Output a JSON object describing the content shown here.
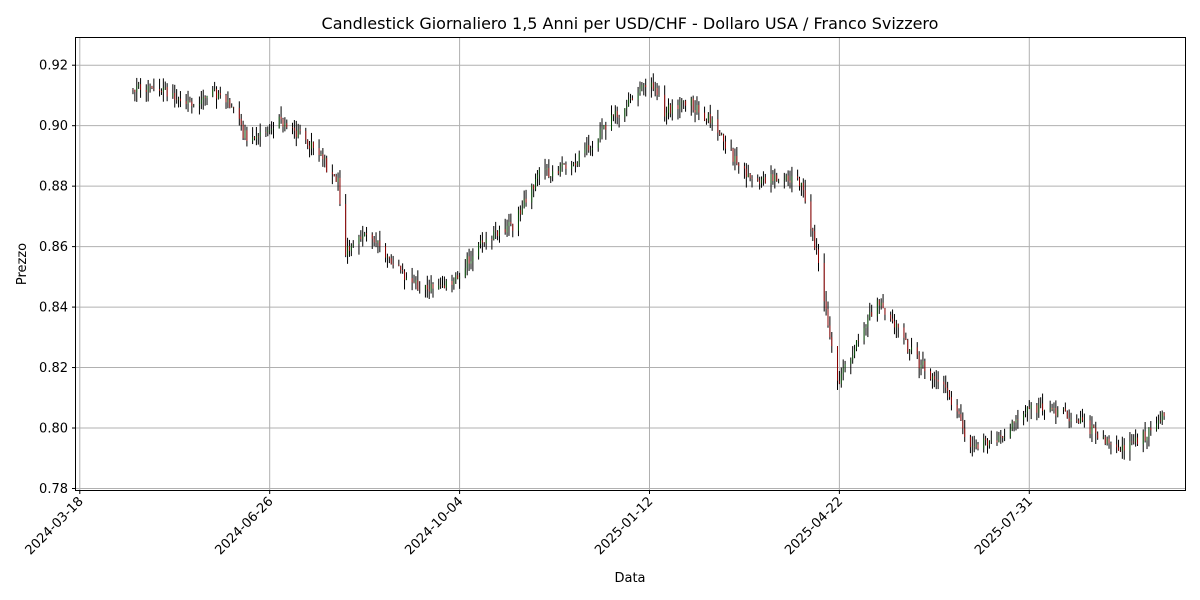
{
  "chart_data": {
    "type": "candlestick",
    "title": "Candlestick Giornaliero 1,5 Anni per USD/CHF - Dollaro USA / Franco Svizzero",
    "xlabel": "Data",
    "ylabel": "Prezzo",
    "grid": true,
    "x_ticks": [
      "2024-03-18",
      "2024-06-26",
      "2024-10-04",
      "2025-01-12",
      "2025-04-22",
      "2025-07-31"
    ],
    "y_ticks": [
      "0.78",
      "0.80",
      "0.82",
      "0.84",
      "0.86",
      "0.88",
      "0.90",
      "0.92"
    ],
    "ylim": [
      0.7795,
      0.929
    ],
    "xlim": [
      "2024-03-16",
      "2025-10-21"
    ],
    "colors": {
      "up": "#008000",
      "down": "#ff0000",
      "wick": "#000000"
    },
    "series_anchor_dates": [
      "2024-04-15",
      "2024-05-01",
      "2024-05-15",
      "2024-06-01",
      "2024-06-15",
      "2024-07-01",
      "2024-07-15",
      "2024-08-01",
      "2024-08-05",
      "2024-08-15",
      "2024-09-01",
      "2024-09-15",
      "2024-10-01",
      "2024-10-15",
      "2024-11-01",
      "2024-11-15",
      "2024-12-01",
      "2024-12-15",
      "2025-01-01",
      "2025-01-12",
      "2025-01-20",
      "2025-02-01",
      "2025-02-15",
      "2025-03-01",
      "2025-03-15",
      "2025-04-01",
      "2025-04-10",
      "2025-04-21",
      "2025-05-01",
      "2025-05-12",
      "2025-06-01",
      "2025-06-15",
      "2025-07-01",
      "2025-07-15",
      "2025-08-01",
      "2025-08-15",
      "2025-09-01",
      "2025-09-15",
      "2025-10-01",
      "2025-10-10"
    ],
    "series_anchor_closes": [
      0.912,
      0.912,
      0.906,
      0.912,
      0.894,
      0.902,
      0.895,
      0.882,
      0.858,
      0.866,
      0.853,
      0.846,
      0.848,
      0.862,
      0.867,
      0.884,
      0.886,
      0.896,
      0.908,
      0.914,
      0.905,
      0.908,
      0.901,
      0.885,
      0.882,
      0.882,
      0.858,
      0.815,
      0.828,
      0.842,
      0.823,
      0.814,
      0.794,
      0.797,
      0.807,
      0.806,
      0.8,
      0.793,
      0.798,
      0.805
    ]
  }
}
